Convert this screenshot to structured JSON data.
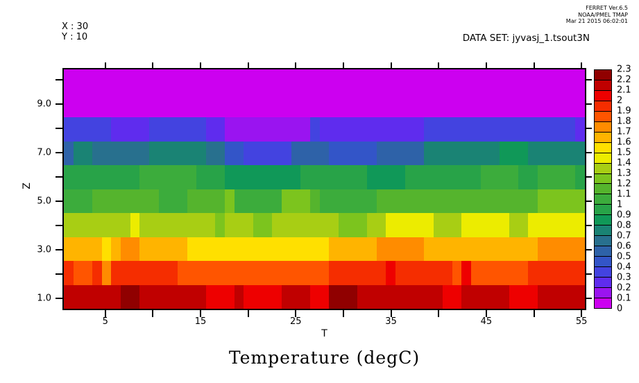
{
  "header": {
    "ferret_version": "FERRET Ver.6.5",
    "ferret_org": "NOAA/PMEL TMAP",
    "ferret_date": "Mar 21 2015 06:02:01",
    "slice_x": "X : 30",
    "slice_y": "Y : 10",
    "dataset": "DATA SET: jyvasj_1.tsout3N"
  },
  "chart_data": {
    "type": "heatmap",
    "title": "Temperature (degC)",
    "xlabel": "T",
    "ylabel": "Z",
    "x_range": [
      0.5,
      55.5
    ],
    "y_range": [
      0.5,
      10.5
    ],
    "x_ticks": [
      5,
      10,
      15,
      20,
      25,
      30,
      35,
      40,
      45,
      50,
      55
    ],
    "x_labeled_ticks": [
      {
        "value": 5,
        "label": "5"
      },
      {
        "value": 15,
        "label": "15"
      },
      {
        "value": 25,
        "label": "25"
      },
      {
        "value": 35,
        "label": "35"
      },
      {
        "value": 45,
        "label": "45"
      },
      {
        "value": 55,
        "label": "55"
      }
    ],
    "y_ticks": [
      1,
      2,
      3,
      4,
      5,
      6,
      7,
      8,
      9,
      10
    ],
    "y_labeled_ticks": [
      {
        "value": 1,
        "label": "1.0"
      },
      {
        "value": 3,
        "label": "3.0"
      },
      {
        "value": 5,
        "label": "5.0"
      },
      {
        "value": 7,
        "label": "7.0"
      },
      {
        "value": 9,
        "label": "9.0"
      }
    ],
    "rows": [
      {
        "z": 1,
        "values": [
          2.15,
          2.15,
          2.15,
          2.15,
          2.15,
          2.15,
          2.25,
          2.25,
          2.15,
          2.15,
          2.15,
          2.15,
          2.15,
          2.15,
          2.15,
          2.05,
          2.05,
          2.05,
          2.15,
          2.05,
          2.05,
          2.05,
          2.05,
          2.15,
          2.15,
          2.15,
          2.05,
          2.05,
          2.25,
          2.25,
          2.25,
          2.15,
          2.15,
          2.15,
          2.15,
          2.15,
          2.15,
          2.15,
          2.15,
          2.15,
          2.05,
          2.05,
          2.15,
          2.15,
          2.15,
          2.15,
          2.15,
          2.05,
          2.05,
          2.05,
          2.15,
          2.15,
          2.15,
          2.15,
          2.15
        ]
      },
      {
        "z": 2,
        "values": [
          1.95,
          1.85,
          1.85,
          1.95,
          1.75,
          1.95,
          1.95,
          1.95,
          1.95,
          1.95,
          1.95,
          1.95,
          1.85,
          1.85,
          1.85,
          1.85,
          1.85,
          1.85,
          1.85,
          1.85,
          1.85,
          1.85,
          1.85,
          1.85,
          1.85,
          1.85,
          1.85,
          1.85,
          1.95,
          1.95,
          1.95,
          1.95,
          1.95,
          1.95,
          2.05,
          1.95,
          1.95,
          1.95,
          1.95,
          1.95,
          1.95,
          1.85,
          2.05,
          1.85,
          1.85,
          1.85,
          1.85,
          1.85,
          1.85,
          1.95,
          1.95,
          1.95,
          1.95,
          1.95,
          1.95
        ]
      },
      {
        "z": 3,
        "values": [
          1.65,
          1.65,
          1.65,
          1.65,
          1.55,
          1.65,
          1.75,
          1.75,
          1.65,
          1.65,
          1.65,
          1.65,
          1.65,
          1.55,
          1.55,
          1.55,
          1.55,
          1.55,
          1.55,
          1.55,
          1.55,
          1.55,
          1.55,
          1.55,
          1.55,
          1.55,
          1.55,
          1.55,
          1.65,
          1.65,
          1.65,
          1.65,
          1.65,
          1.75,
          1.75,
          1.75,
          1.75,
          1.75,
          1.65,
          1.65,
          1.65,
          1.65,
          1.65,
          1.65,
          1.65,
          1.65,
          1.65,
          1.65,
          1.65,
          1.65,
          1.75,
          1.75,
          1.75,
          1.75,
          1.75
        ]
      },
      {
        "z": 4,
        "values": [
          1.35,
          1.35,
          1.35,
          1.35,
          1.35,
          1.35,
          1.35,
          1.45,
          1.35,
          1.35,
          1.35,
          1.35,
          1.35,
          1.35,
          1.35,
          1.35,
          1.25,
          1.35,
          1.35,
          1.35,
          1.25,
          1.25,
          1.35,
          1.35,
          1.35,
          1.35,
          1.35,
          1.35,
          1.35,
          1.25,
          1.25,
          1.25,
          1.35,
          1.35,
          1.45,
          1.45,
          1.45,
          1.45,
          1.45,
          1.35,
          1.35,
          1.35,
          1.45,
          1.45,
          1.45,
          1.45,
          1.45,
          1.35,
          1.35,
          1.45,
          1.45,
          1.45,
          1.45,
          1.45,
          1.45
        ]
      },
      {
        "z": 5,
        "values": [
          1.05,
          1.05,
          1.05,
          1.15,
          1.15,
          1.15,
          1.15,
          1.15,
          1.15,
          1.15,
          1.05,
          1.05,
          1.05,
          1.15,
          1.15,
          1.15,
          1.15,
          1.25,
          1.05,
          1.05,
          1.05,
          1.05,
          1.05,
          1.25,
          1.25,
          1.25,
          1.15,
          1.05,
          1.05,
          1.05,
          1.05,
          1.05,
          1.05,
          1.15,
          1.15,
          1.15,
          1.15,
          1.15,
          1.15,
          1.15,
          1.15,
          1.15,
          1.15,
          1.15,
          1.15,
          1.15,
          1.15,
          1.15,
          1.15,
          1.15,
          1.25,
          1.25,
          1.25,
          1.25,
          1.25
        ]
      },
      {
        "z": 6,
        "values": [
          0.95,
          0.95,
          0.95,
          0.95,
          0.95,
          0.95,
          0.95,
          0.95,
          1.05,
          1.05,
          1.05,
          1.05,
          1.05,
          1.05,
          0.95,
          0.95,
          0.95,
          0.85,
          0.85,
          0.85,
          0.85,
          0.85,
          0.85,
          0.85,
          0.85,
          0.95,
          0.95,
          0.95,
          0.95,
          0.95,
          0.95,
          0.95,
          0.85,
          0.85,
          0.85,
          0.85,
          0.95,
          0.95,
          0.95,
          0.95,
          0.95,
          0.95,
          0.95,
          0.95,
          1.05,
          1.05,
          1.05,
          1.05,
          0.95,
          0.95,
          1.05,
          1.05,
          1.05,
          1.05,
          0.95
        ]
      },
      {
        "z": 7,
        "values": [
          0.55,
          0.75,
          0.75,
          0.65,
          0.65,
          0.65,
          0.65,
          0.65,
          0.65,
          0.75,
          0.75,
          0.75,
          0.75,
          0.75,
          0.75,
          0.65,
          0.65,
          0.45,
          0.45,
          0.35,
          0.35,
          0.35,
          0.35,
          0.35,
          0.55,
          0.55,
          0.55,
          0.55,
          0.45,
          0.45,
          0.45,
          0.45,
          0.45,
          0.55,
          0.55,
          0.55,
          0.55,
          0.55,
          0.75,
          0.75,
          0.75,
          0.75,
          0.75,
          0.75,
          0.75,
          0.75,
          0.85,
          0.85,
          0.85,
          0.75,
          0.75,
          0.75,
          0.75,
          0.75,
          0.75
        ]
      },
      {
        "z": 8,
        "values": [
          0.35,
          0.35,
          0.35,
          0.35,
          0.35,
          0.25,
          0.25,
          0.25,
          0.25,
          0.35,
          0.35,
          0.35,
          0.35,
          0.35,
          0.35,
          0.25,
          0.25,
          0.15,
          0.15,
          0.15,
          0.15,
          0.15,
          0.15,
          0.15,
          0.15,
          0.15,
          0.35,
          0.25,
          0.25,
          0.25,
          0.25,
          0.25,
          0.25,
          0.25,
          0.25,
          0.25,
          0.25,
          0.25,
          0.35,
          0.35,
          0.35,
          0.35,
          0.35,
          0.35,
          0.35,
          0.35,
          0.35,
          0.35,
          0.35,
          0.35,
          0.35,
          0.35,
          0.35,
          0.35,
          0.25
        ]
      },
      {
        "z": 9,
        "values": [
          0.05,
          0.05,
          0.05,
          0.05,
          0.05,
          0.05,
          0.05,
          0.05,
          0.05,
          0.05,
          0.05,
          0.05,
          0.05,
          0.05,
          0.05,
          0.05,
          0.05,
          0.05,
          0.05,
          0.05,
          0.05,
          0.05,
          0.05,
          0.05,
          0.05,
          0.05,
          0.05,
          0.05,
          0.05,
          0.05,
          0.05,
          0.05,
          0.05,
          0.05,
          0.05,
          0.05,
          0.05,
          0.05,
          0.05,
          0.05,
          0.05,
          0.05,
          0.05,
          0.05,
          0.05,
          0.05,
          0.05,
          0.05,
          0.05,
          0.05,
          0.05,
          0.05,
          0.05,
          0.05,
          0.05
        ]
      },
      {
        "z": 10,
        "values": [
          0.05,
          0.05,
          0.05,
          0.05,
          0.05,
          0.05,
          0.05,
          0.05,
          0.05,
          0.05,
          0.05,
          0.05,
          0.05,
          0.05,
          0.05,
          0.05,
          0.05,
          0.05,
          0.05,
          0.05,
          0.05,
          0.05,
          0.05,
          0.05,
          0.05,
          0.05,
          0.05,
          0.05,
          0.05,
          0.05,
          0.05,
          0.05,
          0.05,
          0.05,
          0.05,
          0.05,
          0.05,
          0.05,
          0.05,
          0.05,
          0.05,
          0.05,
          0.05,
          0.05,
          0.05,
          0.05,
          0.05,
          0.05,
          0.05,
          0.05,
          0.05,
          0.05,
          0.05,
          0.05,
          0.05
        ]
      }
    ],
    "legend": {
      "min": 0,
      "max": 2.3,
      "step": 0.1,
      "position": "right",
      "tick_labels_low_to_high": [
        "0",
        "0.1",
        "0.2",
        "0.3",
        "0.4",
        "0.5",
        "0.6",
        "0.7",
        "0.8",
        "0.9",
        "1",
        "1.1",
        "1.2",
        "1.3",
        "1.4",
        "1.5",
        "1.6",
        "1.7",
        "1.8",
        "1.9",
        "2",
        "2.1",
        "2.2",
        "2.3"
      ],
      "colors_low_to_high": [
        "#CC00F0",
        "#9A14F0",
        "#5F2CEE",
        "#4343E0",
        "#3355C8",
        "#2E62A8",
        "#28708E",
        "#1A8374",
        "#109858",
        "#28A348",
        "#3CAC3C",
        "#55B42D",
        "#7CC41E",
        "#A8CE14",
        "#ECEC00",
        "#FFE000",
        "#FFB400",
        "#FF8C00",
        "#FF5500",
        "#F52D00",
        "#EE0000",
        "#C00000",
        "#900000"
      ]
    }
  }
}
